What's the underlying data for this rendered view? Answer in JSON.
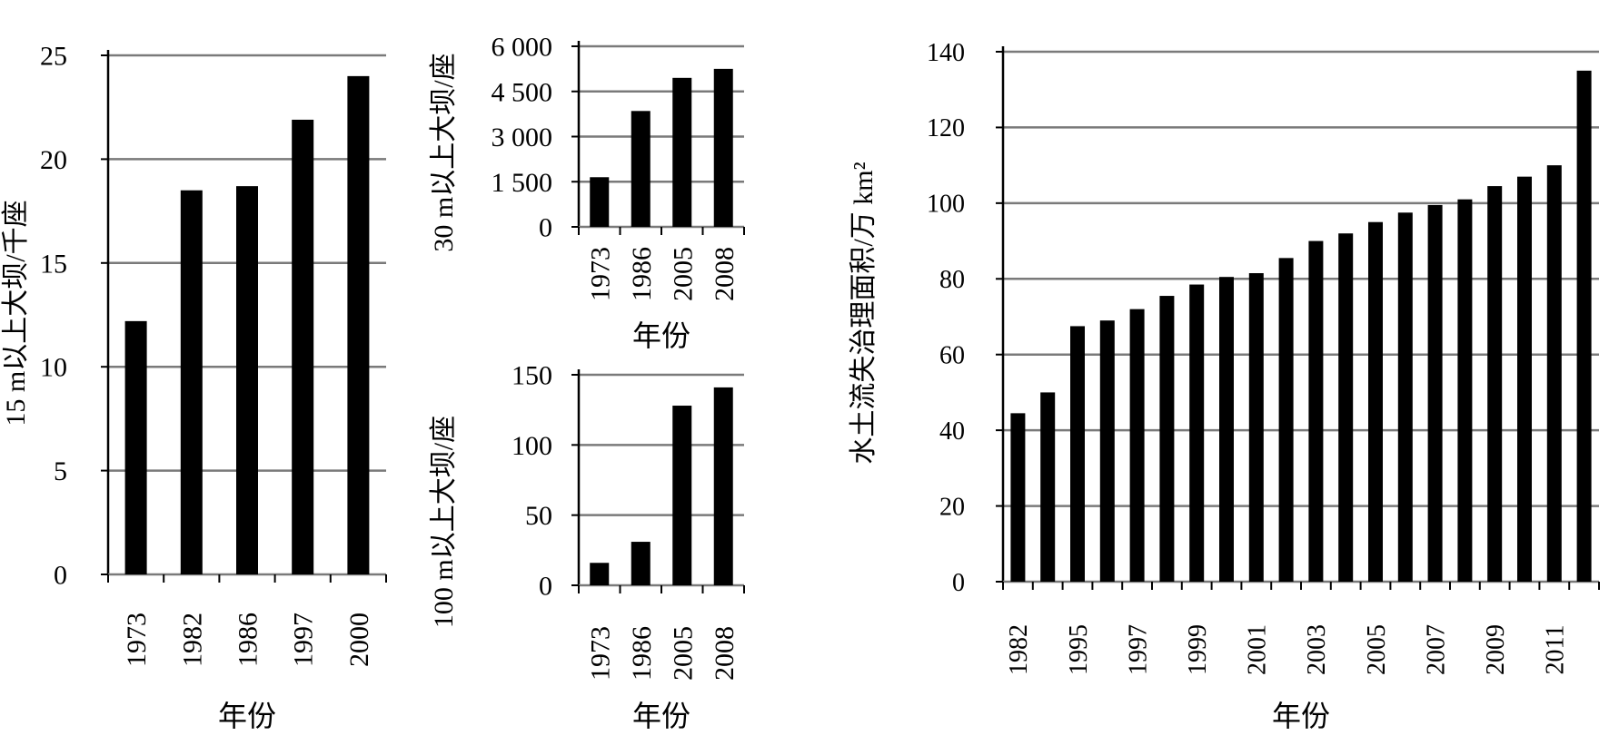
{
  "chart_data": [
    {
      "type": "bar",
      "categories": [
        "1973",
        "1982",
        "1986",
        "1997",
        "2000"
      ],
      "values": [
        12.2,
        18.5,
        18.7,
        21.9,
        24.0
      ],
      "yticks": [
        "0",
        "5",
        "10",
        "15",
        "20",
        "25"
      ],
      "ylim": [
        0,
        25
      ],
      "ylabel": "15 m以上大坝/千座",
      "xlabel": "年份",
      "grid": true
    },
    {
      "type": "bar",
      "categories": [
        "1973",
        "1986",
        "2005",
        "2008"
      ],
      "values": [
        1650,
        3850,
        4950,
        5250
      ],
      "yticks": [
        "0",
        "1 500",
        "3 000",
        "4 500",
        "6 000"
      ],
      "ylim": [
        0,
        6000
      ],
      "ylabel": "30 m以上大坝/座",
      "xlabel": "年份",
      "grid": true
    },
    {
      "type": "bar",
      "categories": [
        "1973",
        "1986",
        "2005",
        "2008"
      ],
      "values": [
        16,
        31,
        128,
        141
      ],
      "yticks": [
        "0",
        "50",
        "100",
        "150"
      ],
      "ylim": [
        0,
        150
      ],
      "ylabel": "100 m以上大坝/座",
      "xlabel": "年份",
      "grid": true
    },
    {
      "type": "bar",
      "categories": [
        "1982",
        "",
        "1995",
        "",
        "1997",
        "",
        "1999",
        "",
        "2001",
        "",
        "2003",
        "",
        "2005",
        "",
        "2007",
        "",
        "2009",
        "",
        "2011",
        ""
      ],
      "values": [
        44.5,
        50,
        67.5,
        69,
        72,
        75.5,
        78.5,
        80.5,
        81.5,
        85.5,
        90,
        92,
        95,
        97.5,
        99.5,
        101,
        104.5,
        107,
        110,
        135
      ],
      "yticks": [
        "0",
        "20",
        "40",
        "60",
        "80",
        "100",
        "120",
        "140"
      ],
      "ylim": [
        0,
        140
      ],
      "ylabel": "水土流失治理面积/万 km²",
      "xlabel": "年份",
      "grid": true
    }
  ]
}
